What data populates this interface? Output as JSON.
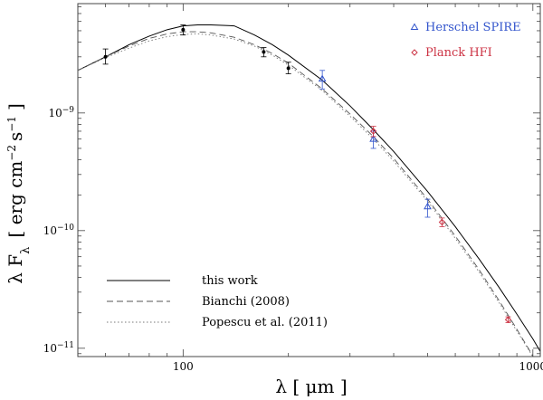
{
  "chart_data": {
    "type": "line",
    "x_scale": "log",
    "y_scale": "log",
    "xlim": [
      50,
      1050
    ],
    "ylim": [
      8.5e-12,
      8.5e-09
    ],
    "xlabel": "λ [ μm ]",
    "ylabel": "λ F_λ  [ erg cm^-2 s^-1 ]",
    "x_major_ticks": [
      {
        "value": 100,
        "label": "100"
      },
      {
        "value": 1000,
        "label": "1000"
      }
    ],
    "y_major_ticks": [
      {
        "value": 1e-11,
        "label": "10^-11"
      },
      {
        "value": 1e-10,
        "label": "10^-10"
      },
      {
        "value": 1e-09,
        "label": "10^-9"
      }
    ],
    "grid": false,
    "series": [
      {
        "name": "this work",
        "style": "solid",
        "color": "#000000",
        "x": [
          50,
          60,
          70,
          80,
          90,
          100,
          110,
          120,
          140,
          160,
          180,
          200,
          250,
          300,
          350,
          400,
          500,
          600,
          700,
          800,
          900,
          1000,
          1050
        ],
        "y": [
          2.3e-09,
          3e-09,
          3.8e-09,
          4.5e-09,
          5.1e-09,
          5.5e-09,
          5.6e-09,
          5.6e-09,
          5.5e-09,
          4.6e-09,
          3.8e-09,
          3.1e-09,
          1.9e-09,
          1.15e-09,
          7.2e-10,
          4.7e-10,
          2.15e-10,
          1.08e-10,
          5.8e-11,
          3.3e-11,
          1.95e-11,
          1.2e-11,
          9.4e-12
        ]
      },
      {
        "name": "Bianchi (2008)",
        "style": "dashed",
        "color": "#555555",
        "x": [
          50,
          60,
          70,
          80,
          90,
          100,
          110,
          120,
          140,
          160,
          180,
          200,
          250,
          300,
          350,
          400,
          500,
          600,
          700,
          800,
          900,
          1000
        ],
        "y": [
          2.3e-09,
          3e-09,
          3.7e-09,
          4.3e-09,
          4.7e-09,
          4.9e-09,
          4.9e-09,
          4.8e-09,
          4.4e-09,
          3.8e-09,
          3.2e-09,
          2.65e-09,
          1.6e-09,
          9.8e-10,
          6.3e-10,
          4.1e-10,
          1.85e-10,
          9e-11,
          4.7e-11,
          2.55e-11,
          1.45e-11,
          8.6e-12
        ]
      },
      {
        "name": "Popescu et al. (2011)",
        "style": "dotted",
        "color": "#777777",
        "x": [
          50,
          60,
          70,
          80,
          90,
          100,
          110,
          120,
          140,
          160,
          180,
          200,
          250,
          300,
          350,
          400,
          500,
          600,
          700,
          800,
          900,
          1000
        ],
        "y": [
          2.3e-09,
          2.95e-09,
          3.55e-09,
          4.1e-09,
          4.45e-09,
          4.65e-09,
          4.7e-09,
          4.6e-09,
          4.25e-09,
          3.7e-09,
          3.1e-09,
          2.55e-09,
          1.55e-09,
          9.4e-10,
          6e-10,
          3.9e-10,
          1.78e-10,
          8.6e-11,
          4.5e-11,
          2.45e-11,
          1.4e-11,
          8.5e-12
        ]
      }
    ],
    "points": [
      {
        "name": "",
        "marker": "dot",
        "color": "#000000",
        "data": [
          {
            "x": 60,
            "y": 3e-09,
            "err": [
              2.6e-09,
              3.5e-09
            ]
          },
          {
            "x": 100,
            "y": 5.1e-09,
            "err": [
              4.6e-09,
              5.6e-09
            ]
          },
          {
            "x": 170,
            "y": 3.3e-09,
            "err": [
              3e-09,
              3.6e-09
            ]
          },
          {
            "x": 200,
            "y": 2.4e-09,
            "err": [
              2.15e-09,
              2.7e-09
            ]
          }
        ]
      },
      {
        "name": "Herschel SPIRE",
        "marker": "triangle",
        "color": "#3355cc",
        "data": [
          {
            "x": 250,
            "y": 1.95e-09,
            "err": [
              1.6e-09,
              2.3e-09
            ]
          },
          {
            "x": 350,
            "y": 6e-10,
            "err": [
              5e-10,
              7e-10
            ]
          },
          {
            "x": 500,
            "y": 1.6e-10,
            "err": [
              1.3e-10,
              1.85e-10
            ]
          }
        ]
      },
      {
        "name": "Planck HFI",
        "marker": "diamond",
        "color": "#cc3344",
        "data": [
          {
            "x": 350,
            "y": 7e-10,
            "err": [
              6.3e-10,
              7.7e-10
            ]
          },
          {
            "x": 550,
            "y": 1.18e-10,
            "err": [
              1.08e-10,
              1.28e-10
            ]
          },
          {
            "x": 850,
            "y": 1.75e-11,
            "err": [
              1.65e-11,
              1.85e-11
            ]
          }
        ]
      }
    ],
    "legend_top_right": [
      {
        "label": "Herschel SPIRE",
        "marker": "triangle",
        "color": "#3355cc"
      },
      {
        "label": "Planck HFI",
        "marker": "diamond",
        "color": "#cc3344"
      }
    ],
    "legend_bottom_left": [
      {
        "label": "this work",
        "style": "solid",
        "color": "#000000"
      },
      {
        "label": "Bianchi (2008)",
        "style": "dashed",
        "color": "#555555"
      },
      {
        "label": "Popescu et al. (2011)",
        "style": "dotted",
        "color": "#777777"
      }
    ]
  }
}
